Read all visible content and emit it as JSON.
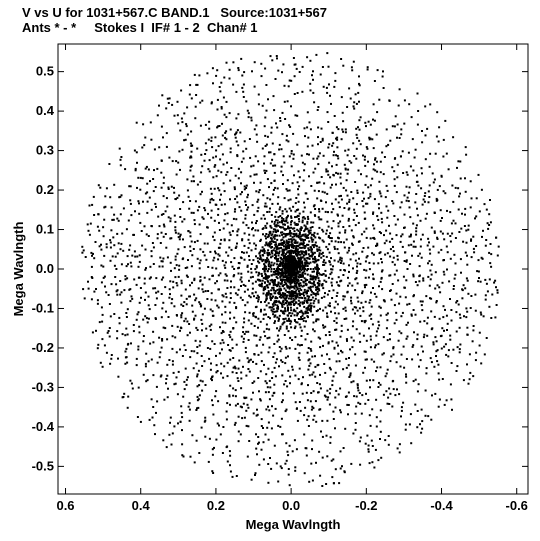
{
  "header": {
    "line1": "V vs U for 1031+567.C BAND.1   Source:1031+567",
    "line2": "Ants * - *     Stokes I  IF# 1 - 2  Chan# 1"
  },
  "chart_data": {
    "type": "scatter",
    "title": "V vs U for 1031+567.C BAND.1   Source:1031+567",
    "subtitle": "Ants * - *     Stokes I  IF# 1 - 2  Chan# 1",
    "xlabel": "Mega Wavlngth",
    "ylabel": "Mega Wavlngth",
    "xlim": [
      0.62,
      -0.63
    ],
    "ylim": [
      -0.57,
      0.57
    ],
    "x_reversed": true,
    "grid": false,
    "x_ticks": [
      0.6,
      0.4,
      0.2,
      0.0,
      -0.2,
      -0.4,
      -0.6
    ],
    "x_tick_labels": [
      "0.6",
      "0.4",
      "0.2",
      "0.0",
      "-0.2",
      "-0.4",
      "-0.6"
    ],
    "y_ticks": [
      0.5,
      0.4,
      0.3,
      0.2,
      0.1,
      0.0,
      -0.1,
      -0.2,
      -0.3,
      -0.4,
      -0.5
    ],
    "y_tick_labels": [
      "0.5",
      "0.4",
      "0.3",
      "0.2",
      "0.1",
      "0.0",
      "-0.1",
      "-0.2",
      "-0.3",
      "-0.4",
      "-0.5"
    ],
    "coverage": {
      "description_shape": "uv tracks",
      "max_radius": 0.56,
      "point_color": "#000000"
    }
  }
}
